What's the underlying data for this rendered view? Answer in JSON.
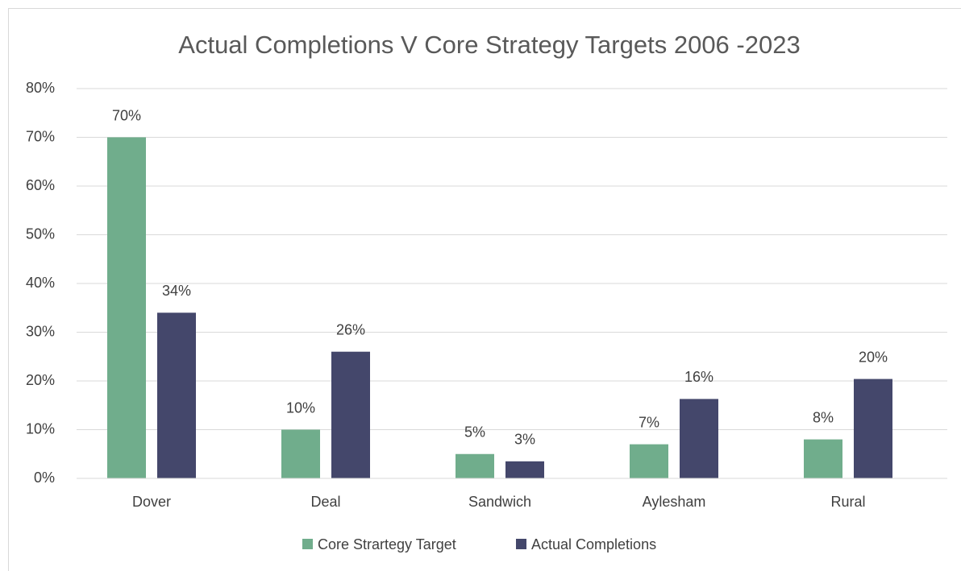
{
  "chart_data": {
    "type": "bar",
    "title": "Actual Completions V Core Strategy Targets 2006 -2023",
    "categories": [
      "Dover",
      "Deal",
      "Sandwich",
      "Aylesham",
      "Rural"
    ],
    "series": [
      {
        "name": "Core Strartegy Target",
        "color": "#70ad8c",
        "values": [
          70,
          10,
          5,
          7,
          8
        ],
        "value_labels": [
          "70%",
          "10%",
          "5%",
          "7%",
          "8%"
        ]
      },
      {
        "name": "Actual Completions",
        "color": "#44476b",
        "values": [
          34,
          26,
          3.5,
          16.3,
          20.4
        ],
        "value_labels": [
          "34%",
          "26%",
          "3%",
          "16%",
          "20%"
        ]
      }
    ],
    "ylim": [
      0,
      80
    ],
    "yticks": [
      {
        "value": 0,
        "label": "0%"
      },
      {
        "value": 10,
        "label": "10%"
      },
      {
        "value": 20,
        "label": "20%"
      },
      {
        "value": 30,
        "label": "30%"
      },
      {
        "value": 40,
        "label": "40%"
      },
      {
        "value": 50,
        "label": "50%"
      },
      {
        "value": 60,
        "label": "60%"
      },
      {
        "value": 70,
        "label": "70%"
      },
      {
        "value": 80,
        "label": "80%"
      }
    ],
    "grid": true,
    "legend": "bottom"
  }
}
